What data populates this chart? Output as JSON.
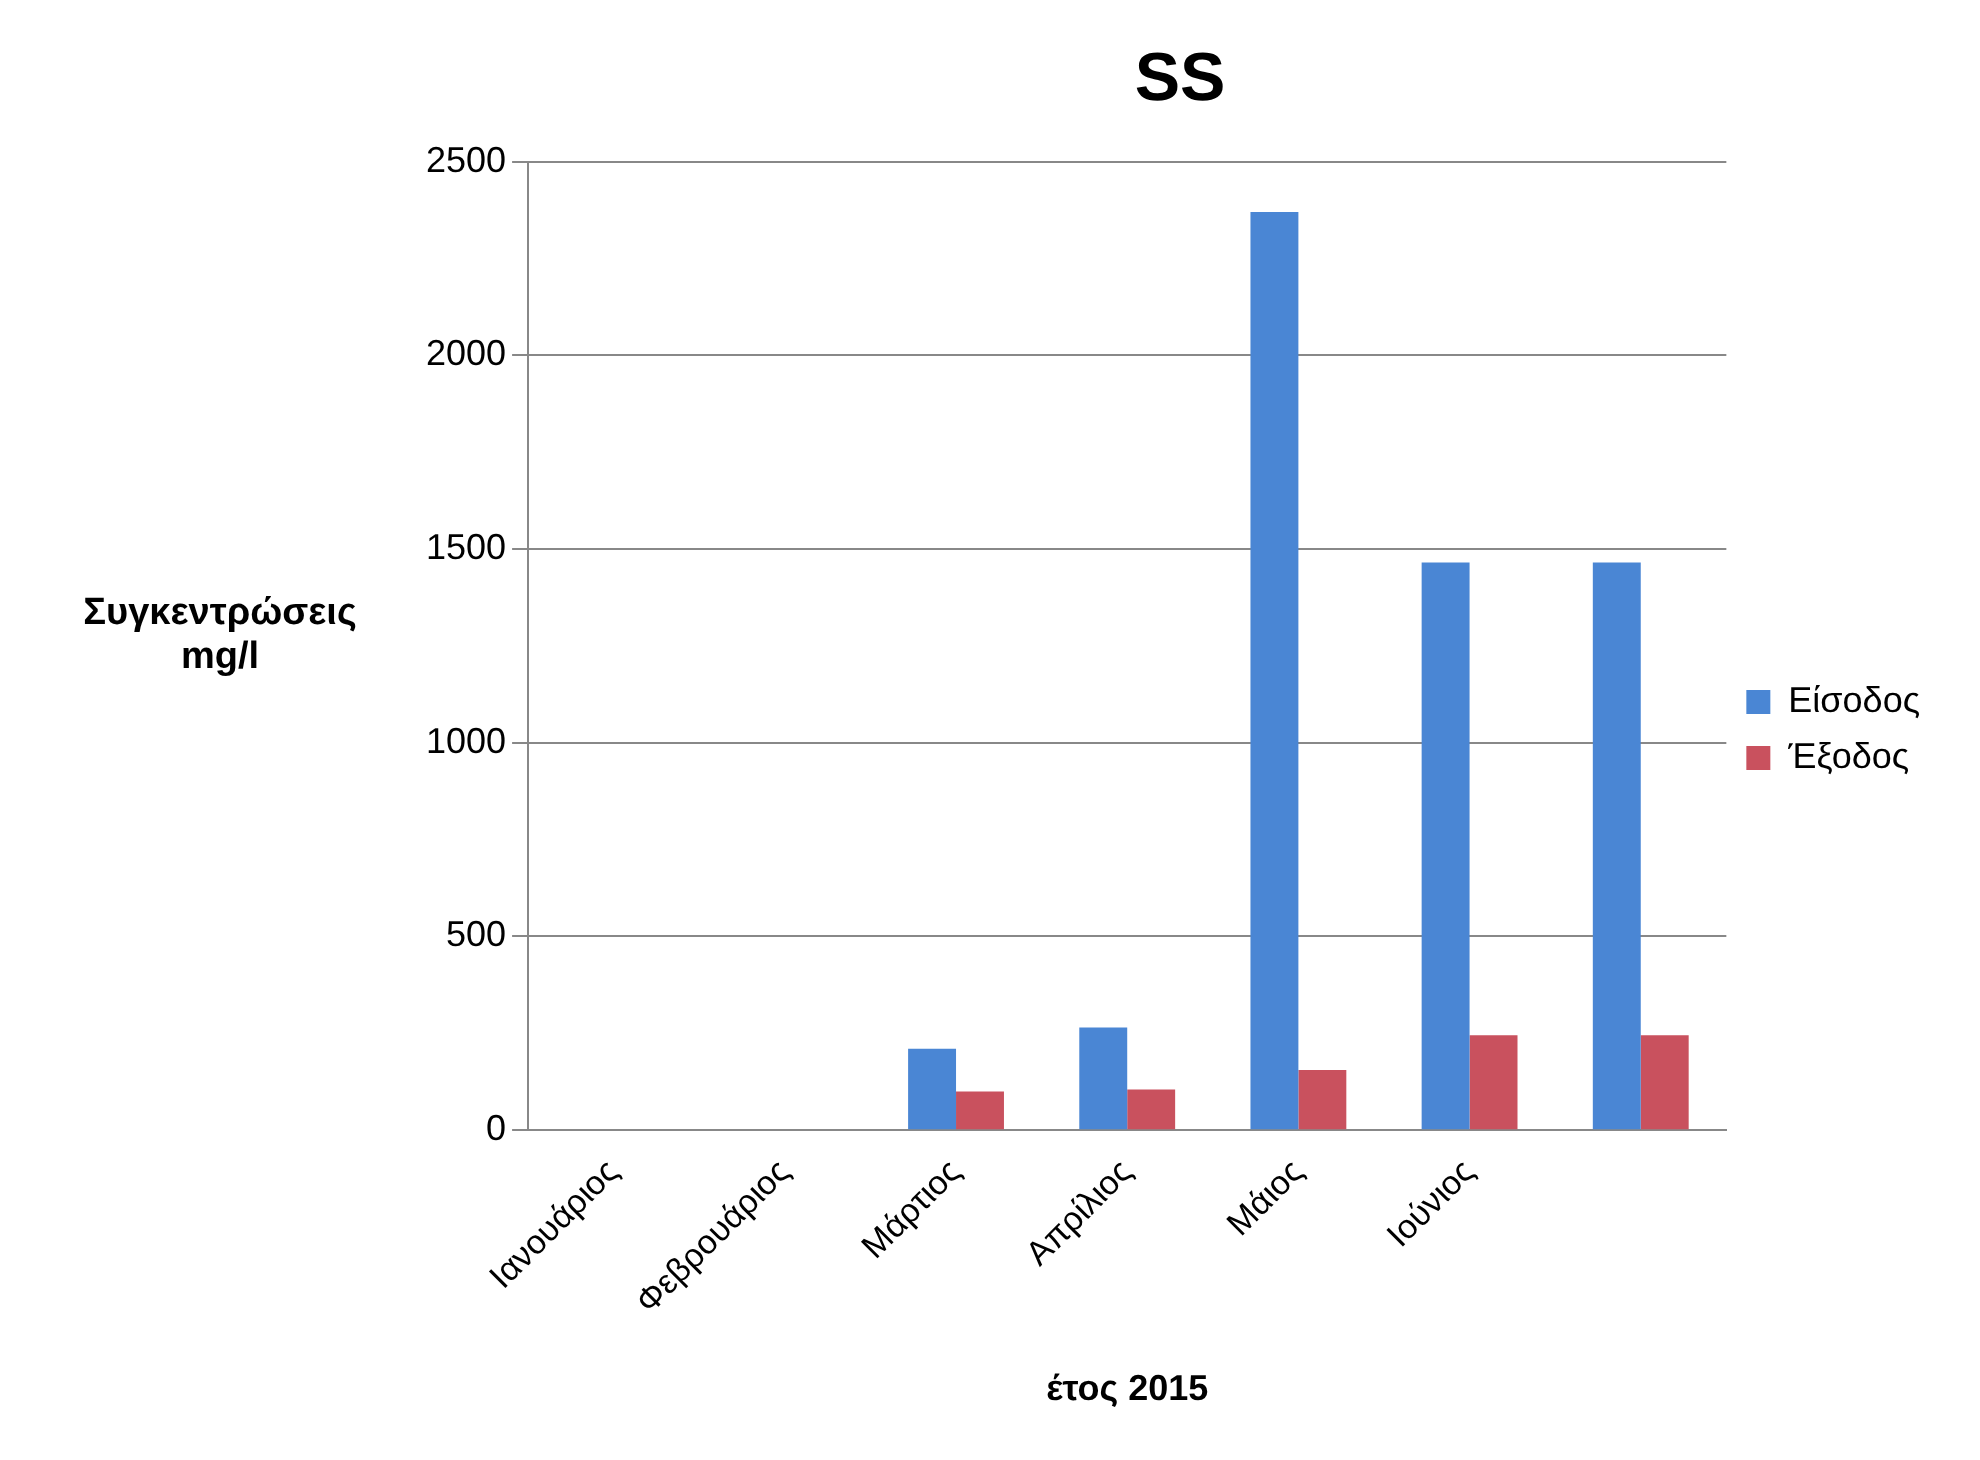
{
  "chart_data": {
    "type": "bar",
    "title": "SS",
    "xlabel": "έτος 2015",
    "ylabel": "Συγκεντρώσεις mg/l",
    "categories": [
      "Ιανουάριος",
      "Φεβρουάριος",
      "Μάρτιος",
      "Απρίλιος",
      "Μάιος",
      "Ιούνιος",
      null
    ],
    "series": [
      {
        "name": "Είσοδος",
        "color": "#4a86d4",
        "values": [
          null,
          null,
          210,
          265,
          2370,
          1465,
          1465
        ]
      },
      {
        "name": "Έξοδος",
        "color": "#c9515e",
        "values": [
          null,
          null,
          100,
          105,
          155,
          245,
          245
        ]
      }
    ],
    "ylim": [
      0,
      2500
    ],
    "yticks": [
      0,
      500,
      1000,
      1500,
      2000,
      2500
    ],
    "grid": "y",
    "legend": "right"
  }
}
